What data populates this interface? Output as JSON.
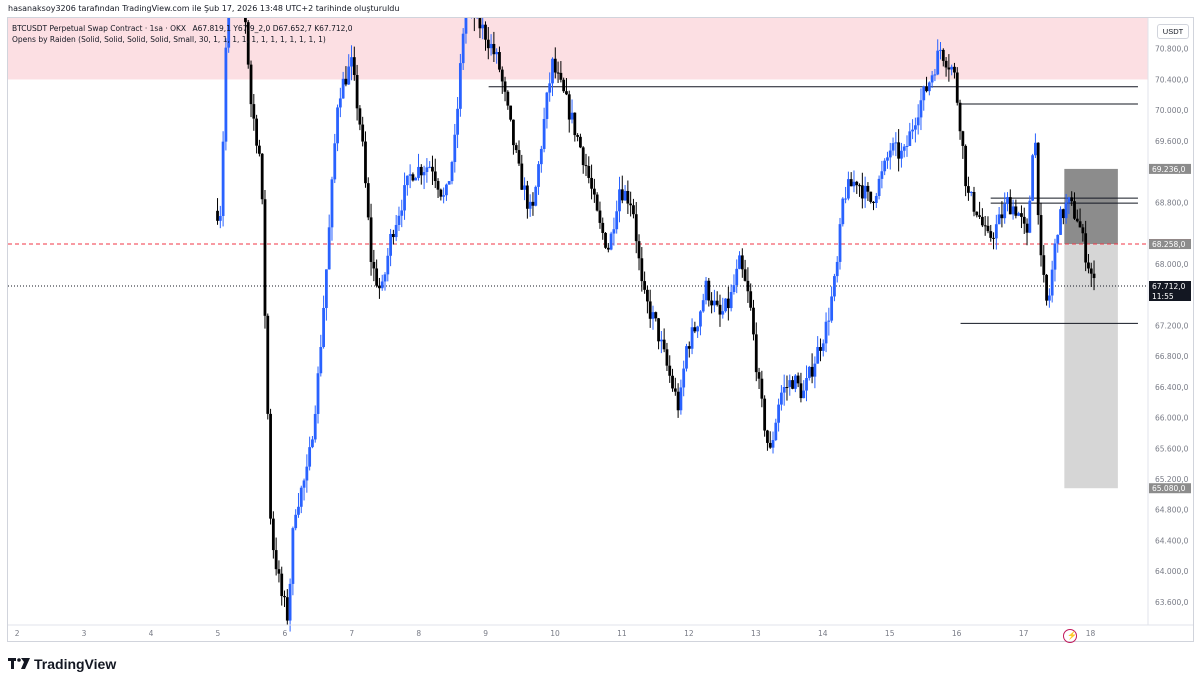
{
  "header": {
    "credit": "hasanaksoy3206 tarafından TradingView.com ile Şub 17, 2026 13:48 UTC+2 tarihinde oluşturuldu"
  },
  "legend": {
    "symbol": "BTCUSDT Perpetual Swap Contract · 1sa · OKX",
    "ohlc": "A67.819,1  Y67.9_2,0  D67.652,7  K67.712,0",
    "indicator": "Opens by Raiden (Solid, Solid, Solid, Solid, Small, 30, 1, 1, 1, 1, 1, 1, 1, 1, 1, 1, 1, 1)"
  },
  "currency": "USDT",
  "footer": {
    "brand": "TradingView"
  },
  "colors": {
    "up": "#2962ff",
    "down": "#000000",
    "supply_zone": "#fcdfe3",
    "red_dashed": "#f23645",
    "target_box": "#d6d6d6",
    "stop_box": "#8c8c8c",
    "axis_label": "#787b86"
  },
  "chart_data": {
    "type": "candlestick",
    "ylim": [
      63300,
      71200
    ],
    "y_ticks": [
      {
        "value": 70800,
        "label": "70.800,0"
      },
      {
        "value": 70400,
        "label": "70.400,0"
      },
      {
        "value": 70000,
        "label": "70.000,0"
      },
      {
        "value": 69600,
        "label": "69.600,0"
      },
      {
        "value": 68800,
        "label": "68.800,0"
      },
      {
        "value": 68000,
        "label": "68.000,0"
      },
      {
        "value": 67200,
        "label": "67.200,0"
      },
      {
        "value": 66800,
        "label": "66.800,0"
      },
      {
        "value": 66400,
        "label": "66.400,0"
      },
      {
        "value": 66000,
        "label": "66.000,0"
      },
      {
        "value": 65600,
        "label": "65.600,0"
      },
      {
        "value": 65200,
        "label": "65.200,0"
      },
      {
        "value": 64800,
        "label": "64.800,0"
      },
      {
        "value": 64400,
        "label": "64.400,0"
      },
      {
        "value": 64000,
        "label": "64.000,0"
      },
      {
        "value": 63600,
        "label": "63.600,0"
      }
    ],
    "x_ticks": [
      "2",
      "3",
      "4",
      "5",
      "6",
      "7",
      "8",
      "9",
      "10",
      "11",
      "12",
      "13",
      "14",
      "15",
      "16",
      "17",
      "18"
    ],
    "x_domain_days": [
      1.87,
      18.9
    ],
    "price_labels": [
      {
        "value": 69236,
        "label": "69.236,0",
        "bg": "#8c8c8c",
        "fg": "#ffffff"
      },
      {
        "value": 68258.7,
        "label": "68.258,7",
        "bg": "#f23645",
        "fg": "#ffffff"
      },
      {
        "value": 68258,
        "label": "68.258,0",
        "bg": "#8c8c8c",
        "fg": "#ffffff"
      },
      {
        "value": 67712,
        "label": "67.712,0",
        "sub": "11:55",
        "bg": "#131722",
        "fg": "#ffffff"
      },
      {
        "value": 65080,
        "label": "65.080,0",
        "bg": "#8c8c8c",
        "fg": "#ffffff"
      }
    ],
    "zones": [
      {
        "name": "supply-zone",
        "y_from": 70400,
        "y_to": 71200,
        "x_from": 1.87,
        "x_to": 18.9
      }
    ],
    "position": {
      "entry": 68258,
      "stop": 69236,
      "target": 65080,
      "x_from": 17.65,
      "x_to": 18.45
    },
    "hlines": [
      {
        "name": "red-dashed-line",
        "value": 68258.7,
        "style": "dashed",
        "x_from": 1.87,
        "x_to": 18.9
      },
      {
        "name": "last-price-line",
        "value": 67712,
        "style": "dotted",
        "x_from": 1.87,
        "x_to": 18.9
      },
      {
        "name": "level-line-1",
        "value": 70305,
        "style": "solid",
        "x_from": 9.05,
        "x_to": 18.75
      },
      {
        "name": "level-line-2",
        "value": 70080,
        "style": "solid",
        "x_from": 16.1,
        "x_to": 18.75
      },
      {
        "name": "level-line-3",
        "value": 68855,
        "style": "solid",
        "x_from": 16.55,
        "x_to": 18.75
      },
      {
        "name": "level-line-4",
        "value": 68790,
        "style": "solid",
        "x_from": 16.55,
        "x_to": 18.75
      },
      {
        "name": "level-line-5",
        "value": 67225,
        "style": "solid",
        "x_from": 16.1,
        "x_to": 18.75
      }
    ],
    "path": [
      [
        1.87,
        68500
      ],
      [
        4.0,
        68500
      ],
      [
        5.05,
        68700
      ],
      [
        5.15,
        71500
      ],
      [
        5.4,
        71400
      ],
      [
        5.5,
        70100
      ],
      [
        5.65,
        69300
      ],
      [
        5.72,
        67000
      ],
      [
        5.8,
        64500
      ],
      [
        5.95,
        63700
      ],
      [
        6.05,
        63400
      ],
      [
        6.15,
        64800
      ],
      [
        6.35,
        65300
      ],
      [
        6.5,
        66500
      ],
      [
        6.65,
        68200
      ],
      [
        6.8,
        70200
      ],
      [
        7.0,
        70600
      ],
      [
        7.15,
        69700
      ],
      [
        7.3,
        68000
      ],
      [
        7.45,
        67600
      ],
      [
        7.6,
        68400
      ],
      [
        7.9,
        69200
      ],
      [
        8.2,
        69300
      ],
      [
        8.4,
        68800
      ],
      [
        8.55,
        69600
      ],
      [
        8.7,
        71400
      ],
      [
        9.0,
        71000
      ],
      [
        9.2,
        70600
      ],
      [
        9.5,
        69200
      ],
      [
        9.7,
        68600
      ],
      [
        9.9,
        70000
      ],
      [
        10.0,
        70600
      ],
      [
        10.25,
        70000
      ],
      [
        10.5,
        69300
      ],
      [
        10.7,
        68500
      ],
      [
        10.85,
        68200
      ],
      [
        11.0,
        69000
      ],
      [
        11.2,
        68800
      ],
      [
        11.35,
        67600
      ],
      [
        11.55,
        67200
      ],
      [
        11.7,
        66700
      ],
      [
        11.9,
        66100
      ],
      [
        12.0,
        66900
      ],
      [
        12.15,
        67200
      ],
      [
        12.3,
        67700
      ],
      [
        12.5,
        67300
      ],
      [
        12.65,
        67500
      ],
      [
        12.8,
        68000
      ],
      [
        12.95,
        67500
      ],
      [
        13.1,
        66300
      ],
      [
        13.25,
        65500
      ],
      [
        13.4,
        66300
      ],
      [
        13.6,
        66500
      ],
      [
        13.75,
        66300
      ],
      [
        13.9,
        66700
      ],
      [
        14.1,
        67200
      ],
      [
        14.25,
        67900
      ],
      [
        14.35,
        68900
      ],
      [
        14.55,
        69100
      ],
      [
        14.75,
        68800
      ],
      [
        14.95,
        69200
      ],
      [
        15.05,
        69500
      ],
      [
        15.25,
        69400
      ],
      [
        15.45,
        70000
      ],
      [
        15.6,
        70300
      ],
      [
        15.8,
        70800
      ],
      [
        16.0,
        70500
      ],
      [
        16.1,
        69800
      ],
      [
        16.2,
        68900
      ],
      [
        16.35,
        68700
      ],
      [
        16.5,
        68300
      ],
      [
        16.65,
        68500
      ],
      [
        16.8,
        68800
      ],
      [
        16.95,
        68700
      ],
      [
        17.1,
        68300
      ],
      [
        17.2,
        69900
      ],
      [
        17.3,
        68000
      ],
      [
        17.4,
        67400
      ],
      [
        17.55,
        68500
      ],
      [
        17.7,
        68800
      ],
      [
        17.85,
        68600
      ],
      [
        17.95,
        68200
      ],
      [
        18.1,
        67712
      ]
    ]
  }
}
